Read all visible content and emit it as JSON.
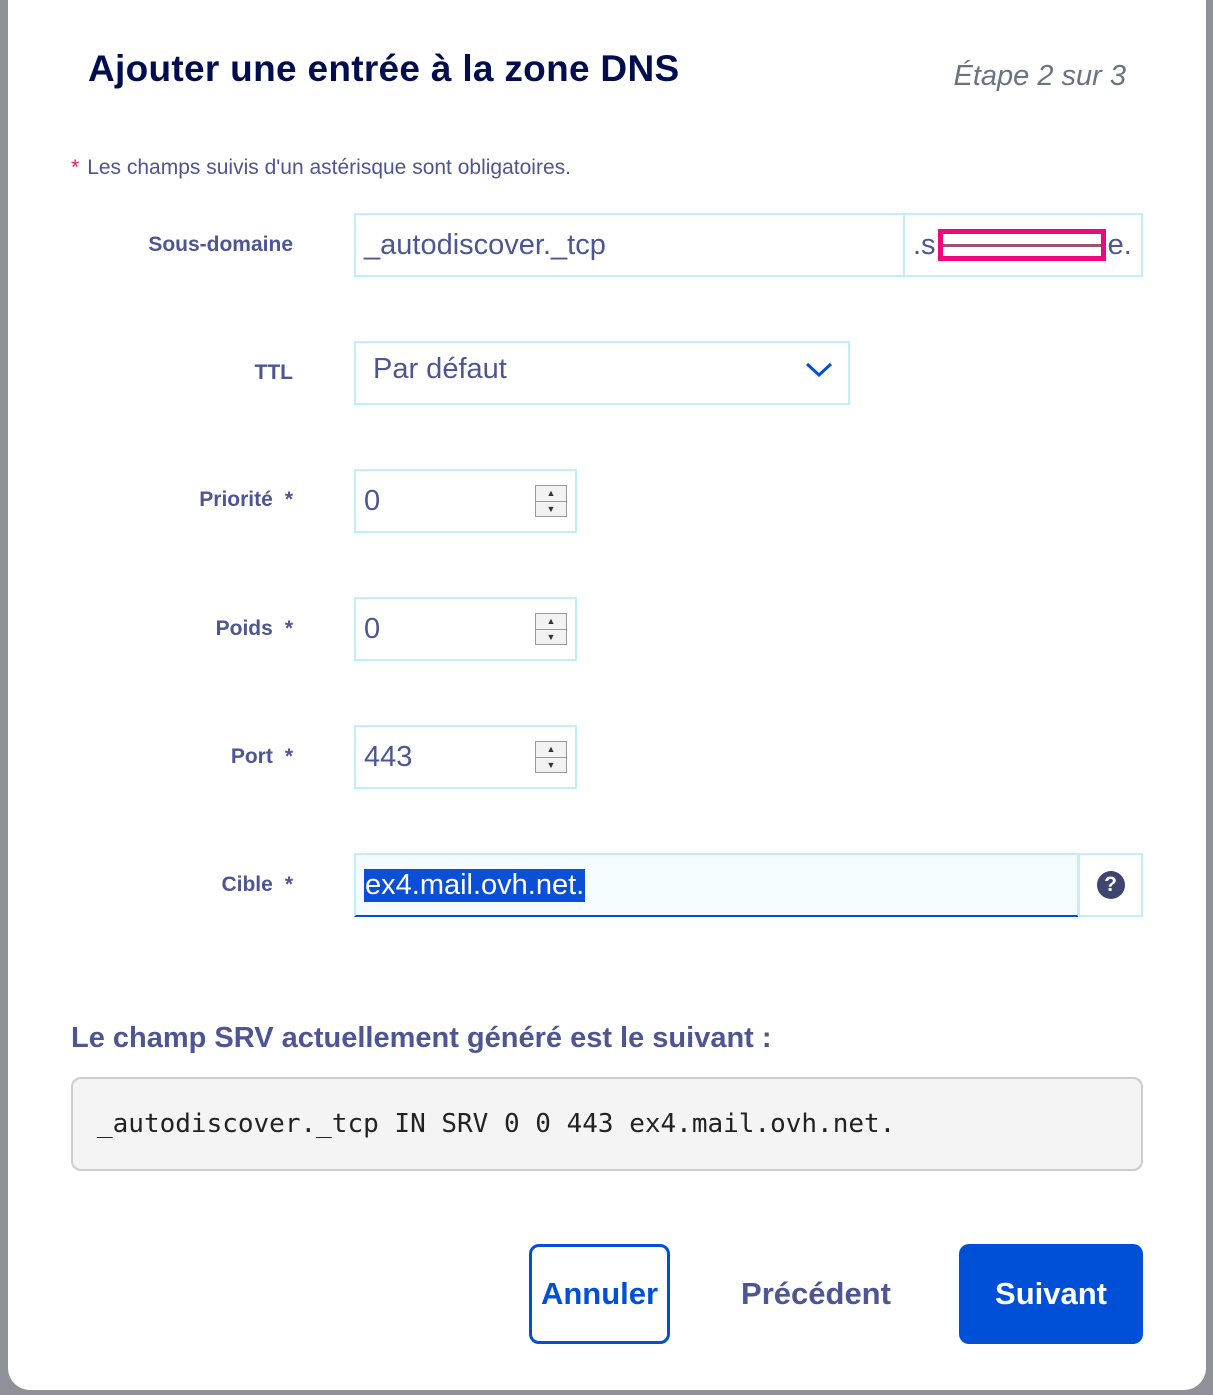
{
  "modal": {
    "title": "Ajouter une entrée à la zone DNS",
    "step": "Étape 2 sur 3",
    "required_note": "Les champs suivis d'un astérisque sont obligatoires.",
    "required_star": "*"
  },
  "form": {
    "subdomain": {
      "label": "Sous-domaine",
      "value": "_autodiscover._tcp",
      "suffix_start": ".s",
      "suffix_end": "e."
    },
    "ttl": {
      "label": "TTL",
      "value": "Par défaut"
    },
    "priority": {
      "label": "Priorité",
      "asterisk": "*",
      "value": "0"
    },
    "weight": {
      "label": "Poids",
      "asterisk": "*",
      "value": "0"
    },
    "port": {
      "label": "Port",
      "asterisk": "*",
      "value": "443"
    },
    "target": {
      "label": "Cible",
      "asterisk": "*",
      "value": "ex4.mail.ovh.net.",
      "help": "?"
    }
  },
  "srv": {
    "heading": "Le champ SRV actuellement généré est le suivant :",
    "value": "_autodiscover._tcp IN SRV 0 0 443 ex4.mail.ovh.net."
  },
  "buttons": {
    "cancel": "Annuler",
    "previous": "Précédent",
    "next": "Suivant"
  },
  "colors": {
    "primary": "#0050d7",
    "text": "#4d5592",
    "title": "#000e4d"
  }
}
